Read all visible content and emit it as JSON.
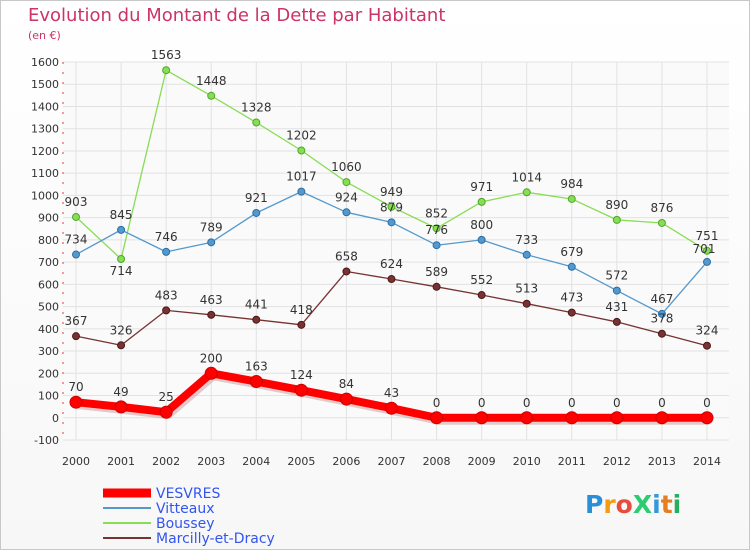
{
  "header": {
    "title": "Evolution du Montant de la Dette par Habitant",
    "unit": "(en €)"
  },
  "logo": {
    "text": "ProXiti",
    "colors": [
      "#2a8fd6",
      "#f39c12",
      "#e74c3c",
      "#2ecc71",
      "#3498db",
      "#e67e22",
      "#27ae60"
    ]
  },
  "chart_data": {
    "type": "line",
    "title": "Evolution du Montant de la Dette par Habitant",
    "ylabel": "(en €)",
    "xlabel": "",
    "ylim": [
      -100,
      1600
    ],
    "yticks": [
      -100,
      0,
      100,
      200,
      300,
      400,
      500,
      600,
      700,
      800,
      900,
      1000,
      1100,
      1200,
      1300,
      1400,
      1500,
      1600
    ],
    "x": [
      "2000",
      "2001",
      "2002",
      "2003",
      "2004",
      "2005",
      "2006",
      "2007",
      "2008",
      "2009",
      "2010",
      "2011",
      "2012",
      "2013",
      "2014"
    ],
    "grid": true,
    "legend_position": "bottom-left",
    "series": [
      {
        "name": "VESVRES",
        "color": "#ff0000",
        "values": [
          70,
          49,
          25,
          200,
          163,
          124,
          84,
          43,
          0,
          0,
          0,
          0,
          0,
          0,
          0
        ]
      },
      {
        "name": "Vitteaux",
        "color": "#5599cc",
        "values": [
          734,
          845,
          746,
          789,
          921,
          1017,
          924,
          879,
          776,
          800,
          733,
          679,
          572,
          467,
          701
        ]
      },
      {
        "name": "Boussey",
        "color": "#88dd55",
        "values": [
          903,
          714,
          1563,
          1448,
          1328,
          1202,
          1060,
          949,
          852,
          971,
          1014,
          984,
          890,
          876,
          751
        ]
      },
      {
        "name": "Marcilly-et-Dracy",
        "color": "#773333",
        "values": [
          367,
          326,
          483,
          463,
          441,
          418,
          658,
          624,
          589,
          552,
          513,
          473,
          431,
          378,
          324
        ]
      }
    ]
  }
}
